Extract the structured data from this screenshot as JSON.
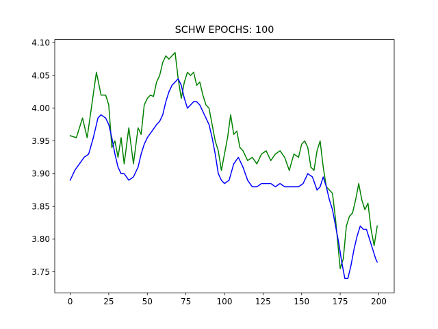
{
  "chart_data": {
    "type": "line",
    "title": "SCHW EPOCHS: 100",
    "xlabel": "",
    "ylabel": "",
    "xlim": [
      -10,
      210
    ],
    "ylim": [
      3.718,
      4.105
    ],
    "xticks": [
      0,
      25,
      50,
      75,
      100,
      125,
      150,
      175,
      200
    ],
    "yticks": [
      3.75,
      3.8,
      3.85,
      3.9,
      3.95,
      4.0,
      4.05,
      4.1
    ],
    "ytick_labels": [
      "3.75",
      "3.80",
      "3.85",
      "3.90",
      "3.95",
      "4.00",
      "4.05",
      "4.10"
    ],
    "grid": false,
    "legend": "none",
    "series": [
      {
        "color": "#008000",
        "x": [
          0,
          4,
          8,
          11,
          14,
          17,
          20,
          23,
          25,
          27,
          29,
          31,
          33,
          35,
          38,
          41,
          44,
          46,
          48,
          50,
          52,
          54,
          56,
          58,
          60,
          62,
          64,
          66,
          68,
          70,
          72,
          74,
          76,
          78,
          80,
          82,
          84,
          86,
          88,
          90,
          92,
          94,
          96,
          98,
          100,
          102,
          104,
          106,
          108,
          110,
          112,
          115,
          118,
          121,
          124,
          127,
          130,
          133,
          136,
          139,
          142,
          145,
          148,
          150,
          152,
          154,
          156,
          158,
          160,
          162,
          164,
          166,
          168,
          170,
          172,
          175,
          177,
          179,
          181,
          183,
          185,
          187,
          189,
          191,
          193,
          195,
          197,
          199
        ],
        "values": [
          3.958,
          3.955,
          3.985,
          3.955,
          4.005,
          4.055,
          4.02,
          4.02,
          4.005,
          3.94,
          3.95,
          3.925,
          3.955,
          3.915,
          3.97,
          3.915,
          3.97,
          3.96,
          4.005,
          4.015,
          4.02,
          4.018,
          4.04,
          4.05,
          4.07,
          4.08,
          4.075,
          4.08,
          4.085,
          4.045,
          4.015,
          4.04,
          4.055,
          4.05,
          4.055,
          4.035,
          4.04,
          4.02,
          4.005,
          4.0,
          3.975,
          3.95,
          3.935,
          3.905,
          3.93,
          3.955,
          3.99,
          3.96,
          3.965,
          3.94,
          3.935,
          3.92,
          3.925,
          3.915,
          3.93,
          3.935,
          3.92,
          3.93,
          3.935,
          3.925,
          3.905,
          3.93,
          3.925,
          3.945,
          3.95,
          3.94,
          3.91,
          3.905,
          3.935,
          3.95,
          3.91,
          3.88,
          3.875,
          3.87,
          3.83,
          3.755,
          3.77,
          3.82,
          3.835,
          3.84,
          3.86,
          3.885,
          3.86,
          3.845,
          3.855,
          3.815,
          3.79,
          3.82
        ]
      },
      {
        "color": "#0000ff",
        "x": [
          0,
          3,
          6,
          9,
          12,
          15,
          18,
          20,
          23,
          25,
          27,
          29,
          31,
          33,
          35,
          38,
          41,
          44,
          46,
          48,
          50,
          53,
          56,
          58,
          60,
          62,
          64,
          66,
          68,
          70,
          72,
          74,
          76,
          78,
          80,
          82,
          84,
          86,
          88,
          90,
          92,
          94,
          96,
          98,
          100,
          103,
          106,
          109,
          112,
          115,
          118,
          121,
          124,
          127,
          130,
          133,
          136,
          139,
          142,
          145,
          148,
          151,
          154,
          157,
          160,
          162,
          164,
          166,
          168,
          170,
          172,
          174,
          176,
          178,
          180,
          182,
          184,
          186,
          188,
          190,
          192,
          194,
          196,
          198,
          199
        ],
        "values": [
          3.89,
          3.905,
          3.915,
          3.925,
          3.93,
          3.955,
          3.985,
          3.99,
          3.985,
          3.975,
          3.955,
          3.93,
          3.91,
          3.9,
          3.9,
          3.89,
          3.895,
          3.91,
          3.93,
          3.945,
          3.955,
          3.965,
          3.975,
          3.98,
          3.99,
          4.01,
          4.025,
          4.035,
          4.04,
          4.045,
          4.035,
          4.015,
          4.0,
          4.005,
          4.01,
          4.01,
          4.005,
          3.995,
          3.985,
          3.975,
          3.955,
          3.93,
          3.9,
          3.89,
          3.885,
          3.89,
          3.915,
          3.925,
          3.91,
          3.89,
          3.88,
          3.88,
          3.885,
          3.885,
          3.885,
          3.88,
          3.885,
          3.88,
          3.88,
          3.88,
          3.88,
          3.885,
          3.9,
          3.895,
          3.875,
          3.88,
          3.895,
          3.88,
          3.86,
          3.845,
          3.82,
          3.795,
          3.765,
          3.74,
          3.74,
          3.76,
          3.785,
          3.805,
          3.82,
          3.815,
          3.815,
          3.8,
          3.785,
          3.77,
          3.765
        ]
      }
    ]
  }
}
